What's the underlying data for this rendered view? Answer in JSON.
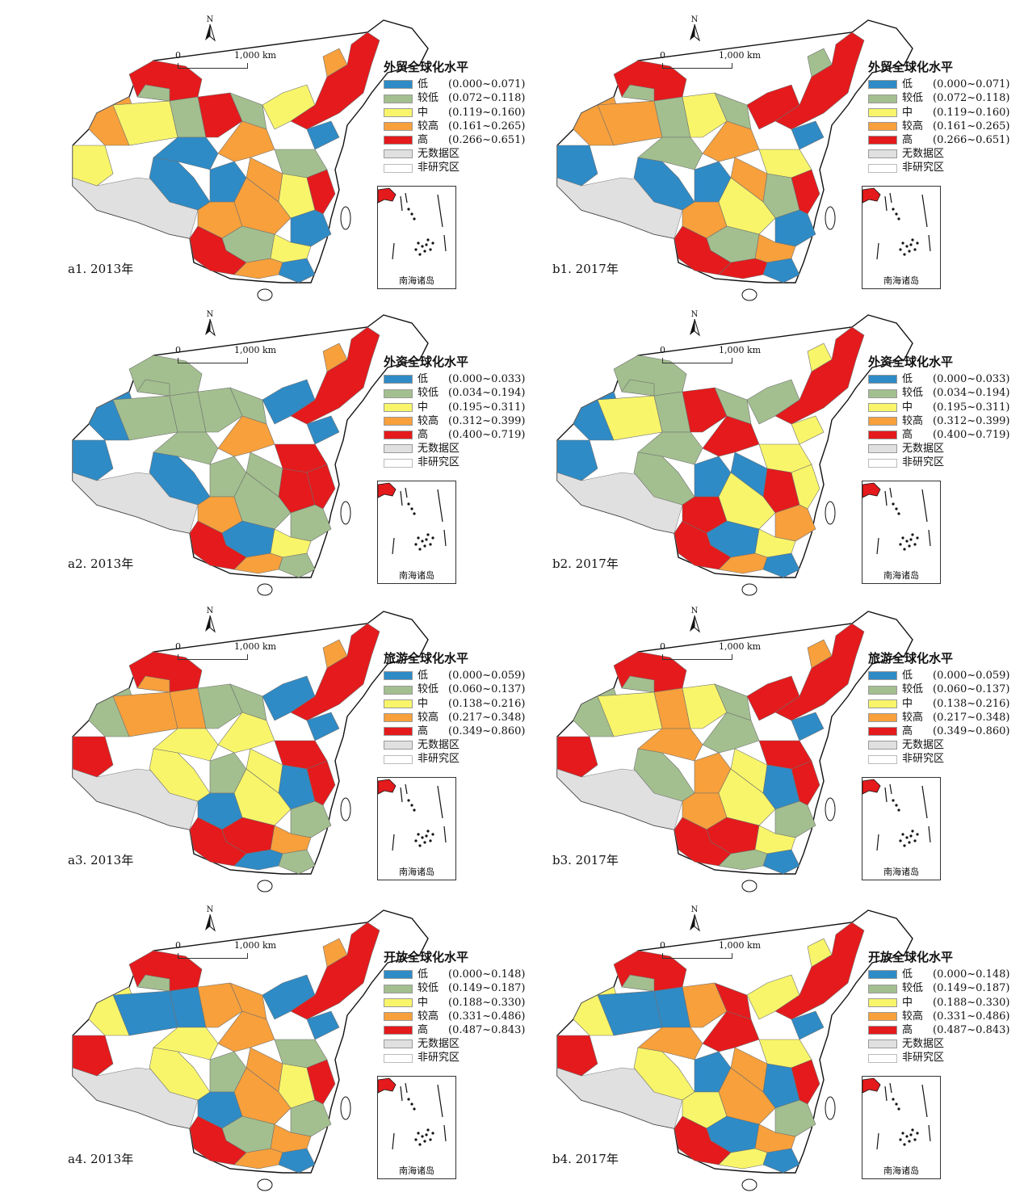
{
  "colors": {
    "low": "#2e8bc6",
    "lowish": "#a3bf8f",
    "mid": "#f8f56a",
    "highish": "#f7a03c",
    "high": "#e41a1c",
    "nodata": "#e0e0e0",
    "nonstudy": "#ffffff"
  },
  "north_label": "N",
  "scale": {
    "zero": "0",
    "km": "1,000 km"
  },
  "inset_caption": "南海诸岛",
  "panels": [
    {
      "id": "a1",
      "caption": "a1. 2013年",
      "legend_title": "外贸全球化水平",
      "classes": [
        {
          "label": "低",
          "range": "(0.000~0.071)"
        },
        {
          "label": "较低",
          "range": "(0.072~0.118)"
        },
        {
          "label": "中",
          "range": "(0.119~0.160)"
        },
        {
          "label": "较高",
          "range": "(0.161~0.265)"
        },
        {
          "label": "高",
          "range": "(0.266~0.651)"
        },
        {
          "label": "无数据区",
          "range": ""
        },
        {
          "label": "非研究区",
          "range": ""
        }
      ]
    },
    {
      "id": "b1",
      "caption": "b1. 2017年",
      "legend_title": "外贸全球化水平",
      "classes": [
        {
          "label": "低",
          "range": "(0.000~0.071)"
        },
        {
          "label": "较低",
          "range": "(0.072~0.118)"
        },
        {
          "label": "中",
          "range": "(0.119~0.160)"
        },
        {
          "label": "较高",
          "range": "(0.161~0.265)"
        },
        {
          "label": "高",
          "range": "(0.266~0.651)"
        },
        {
          "label": "无数据区",
          "range": ""
        },
        {
          "label": "非研究区",
          "range": ""
        }
      ]
    },
    {
      "id": "a2",
      "caption": "a2. 2013年",
      "legend_title": "外资全球化水平",
      "classes": [
        {
          "label": "低",
          "range": "(0.000~0.033)"
        },
        {
          "label": "较低",
          "range": "(0.034~0.194)"
        },
        {
          "label": "中",
          "range": "(0.195~0.311)"
        },
        {
          "label": "较高",
          "range": "(0.312~0.399)"
        },
        {
          "label": "高",
          "range": "(0.400~0.719)"
        },
        {
          "label": "无数据区",
          "range": ""
        },
        {
          "label": "非研究区",
          "range": ""
        }
      ]
    },
    {
      "id": "b2",
      "caption": "b2. 2017年",
      "legend_title": "外资全球化水平",
      "classes": [
        {
          "label": "低",
          "range": "(0.000~0.033)"
        },
        {
          "label": "较低",
          "range": "(0.034~0.194)"
        },
        {
          "label": "中",
          "range": "(0.195~0.311)"
        },
        {
          "label": "较高",
          "range": "(0.312~0.399)"
        },
        {
          "label": "高",
          "range": "(0.400~0.719)"
        },
        {
          "label": "无数据区",
          "range": ""
        },
        {
          "label": "非研究区",
          "range": ""
        }
      ]
    },
    {
      "id": "a3",
      "caption": "a3. 2013年",
      "legend_title": "旅游全球化水平",
      "classes": [
        {
          "label": "低",
          "range": "(0.000~0.059)"
        },
        {
          "label": "较低",
          "range": "(0.060~0.137)"
        },
        {
          "label": "中",
          "range": "(0.138~0.216)"
        },
        {
          "label": "较高",
          "range": "(0.217~0.348)"
        },
        {
          "label": "高",
          "range": "(0.349~0.860)"
        },
        {
          "label": "无数据区",
          "range": ""
        },
        {
          "label": "非研究区",
          "range": ""
        }
      ]
    },
    {
      "id": "b3",
      "caption": "b3. 2017年",
      "legend_title": "旅游全球化水平",
      "classes": [
        {
          "label": "低",
          "range": "(0.000~0.059)"
        },
        {
          "label": "较低",
          "range": "(0.060~0.137)"
        },
        {
          "label": "中",
          "range": "(0.138~0.216)"
        },
        {
          "label": "较高",
          "range": "(0.217~0.348)"
        },
        {
          "label": "高",
          "range": "(0.349~0.860)"
        },
        {
          "label": "无数据区",
          "range": ""
        },
        {
          "label": "非研究区",
          "range": ""
        }
      ]
    },
    {
      "id": "a4",
      "caption": "a4. 2013年",
      "legend_title": "开放全球化水平",
      "classes": [
        {
          "label": "低",
          "range": "(0.000~0.148)"
        },
        {
          "label": "较低",
          "range": "(0.149~0.187)"
        },
        {
          "label": "中",
          "range": "(0.188~0.330)"
        },
        {
          "label": "较高",
          "range": "(0.331~0.486)"
        },
        {
          "label": "高",
          "range": "(0.487~0.843)"
        },
        {
          "label": "无数据区",
          "range": ""
        },
        {
          "label": "非研究区",
          "range": ""
        }
      ]
    },
    {
      "id": "b4",
      "caption": "b4. 2017年",
      "legend_title": "开放全球化水平",
      "classes": [
        {
          "label": "低",
          "range": "(0.000~0.148)"
        },
        {
          "label": "较低",
          "range": "(0.149~0.187)"
        },
        {
          "label": "中",
          "range": "(0.188~0.330)"
        },
        {
          "label": "较高",
          "range": "(0.331~0.486)"
        },
        {
          "label": "高",
          "range": "(0.487~0.843)"
        },
        {
          "label": "无数据区",
          "range": ""
        },
        {
          "label": "非研究区",
          "range": ""
        }
      ]
    }
  ],
  "region_classes": {
    "a1": [
      "high",
      "highish",
      "mid",
      "mid",
      "lowish",
      "low",
      "high",
      "lowish",
      "low",
      "low",
      "highish",
      "mid",
      "high",
      "low",
      "lowish",
      "highish",
      "mid",
      "high",
      "highish",
      "highish",
      "low",
      "lowish",
      "mid",
      "high",
      "highish",
      "low",
      "lowish",
      "highish"
    ],
    "b1": [
      "high",
      "highish",
      "low",
      "highish",
      "lowish",
      "lowish",
      "mid",
      "lowish",
      "low",
      "low",
      "highish",
      "high",
      "high",
      "low",
      "mid",
      "highish",
      "lowish",
      "high",
      "highish",
      "mid",
      "low",
      "lowish",
      "highish",
      "high",
      "high",
      "low",
      "lowish",
      "lowish"
    ],
    "a2": [
      "lowish",
      "low",
      "low",
      "lowish",
      "lowish",
      "lowish",
      "lowish",
      "lowish",
      "low",
      "lowish",
      "highish",
      "low",
      "high",
      "low",
      "high",
      "lowish",
      "high",
      "high",
      "highish",
      "lowish",
      "lowish",
      "low",
      "mid",
      "high",
      "highish",
      "lowish",
      "lowish",
      "highish"
    ],
    "b2": [
      "lowish",
      "low",
      "low",
      "mid",
      "lowish",
      "lowish",
      "high",
      "lowish",
      "lowish",
      "low",
      "high",
      "lowish",
      "high",
      "mid",
      "mid",
      "low",
      "high",
      "mid",
      "high",
      "mid",
      "highish",
      "low",
      "mid",
      "high",
      "highish",
      "low",
      "lowish",
      "mid"
    ],
    "a3": [
      "high",
      "lowish",
      "high",
      "highish",
      "highish",
      "mid",
      "lowish",
      "lowish",
      "mid",
      "lowish",
      "mid",
      "low",
      "high",
      "low",
      "high",
      "mid",
      "low",
      "high",
      "low",
      "mid",
      "lowish",
      "high",
      "highish",
      "high",
      "low",
      "lowish",
      "highish",
      "highish"
    ],
    "b3": [
      "high",
      "lowish",
      "high",
      "mid",
      "highish",
      "highish",
      "mid",
      "lowish",
      "lowish",
      "highish",
      "lowish",
      "high",
      "high",
      "low",
      "high",
      "mid",
      "low",
      "high",
      "highish",
      "mid",
      "lowish",
      "high",
      "mid",
      "high",
      "lowish",
      "low",
      "lowish",
      "highish"
    ],
    "a4": [
      "high",
      "mid",
      "high",
      "low",
      "low",
      "mid",
      "highish",
      "highish",
      "mid",
      "lowish",
      "highish",
      "low",
      "high",
      "low",
      "lowish",
      "highish",
      "mid",
      "high",
      "low",
      "highish",
      "lowish",
      "lowish",
      "highish",
      "high",
      "highish",
      "low",
      "lowish",
      "highish"
    ],
    "b4": [
      "high",
      "mid",
      "high",
      "low",
      "low",
      "highish",
      "highish",
      "high",
      "mid",
      "low",
      "high",
      "mid",
      "high",
      "low",
      "mid",
      "highish",
      "low",
      "high",
      "mid",
      "highish",
      "lowish",
      "low",
      "highish",
      "high",
      "mid",
      "low",
      "lowish",
      "mid"
    ]
  }
}
